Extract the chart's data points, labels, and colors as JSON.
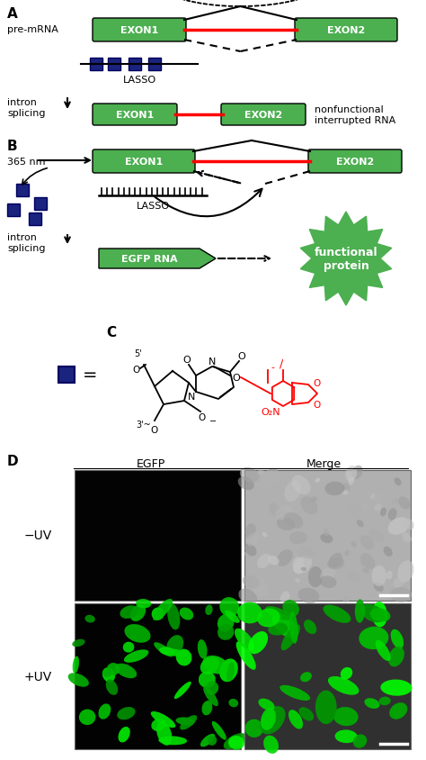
{
  "bg_color": "#ffffff",
  "panel_A_label": "A",
  "panel_B_label": "B",
  "panel_C_label": "C",
  "panel_D_label": "D",
  "exon_color": "#4caf50",
  "lasso_color": "#1a237e",
  "red_line_color": "#ff0000",
  "black": "#000000",
  "white": "#ffffff",
  "panel_A_premrna_label": "pre-mRNA",
  "panel_A_lasso_label": "LASSO",
  "panel_A_intron_label": "intron\nsplicing",
  "panel_A_result_label": "nonfunctional\ninterrupted RNA",
  "panel_A_exon1": "EXON1",
  "panel_A_exon2": "EXON2",
  "panel_B_nm_label": "365 nm",
  "panel_B_lasso_label": "LASSO",
  "panel_B_intron_label": "intron\nsplicing",
  "panel_B_exon1": "EXON1",
  "panel_B_exon2": "EXON2",
  "panel_B_egfp": "EGFP RNA",
  "burst_text": "functional\nprotein",
  "panel_D_egfp_label": "EGFP",
  "panel_D_merge_label": "Merge",
  "panel_D_neg_uv": "−UV",
  "panel_D_pos_uv": "+UV"
}
